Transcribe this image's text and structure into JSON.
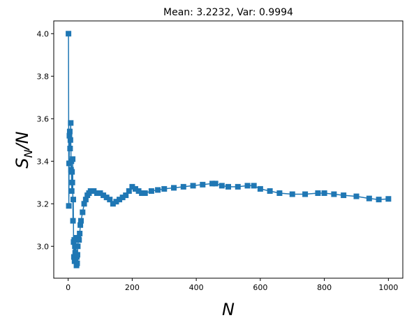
{
  "chart_data": {
    "type": "line",
    "title": "Mean: 3.2232, Var: 0.9994",
    "xlabel": "N",
    "ylabel": {
      "base": "S",
      "sub": "N",
      "suffix": "/N"
    },
    "xlim": [
      -45,
      1045
    ],
    "ylim": [
      2.85,
      4.06
    ],
    "xticks": [
      0,
      200,
      400,
      600,
      800,
      1000
    ],
    "yticks": [
      3.0,
      3.2,
      3.4,
      3.6,
      3.8,
      4.0
    ],
    "ytick_labels": [
      "3.0",
      "3.2",
      "3.4",
      "3.6",
      "3.8",
      "4.0"
    ],
    "grid": false,
    "marker": "square",
    "series": [
      {
        "color": "#1f77b4",
        "x": [
          1,
          2,
          3,
          4,
          5,
          6,
          7,
          8,
          9,
          10,
          11,
          12,
          13,
          14,
          15,
          16,
          17,
          18,
          19,
          20,
          21,
          22,
          23,
          24,
          25,
          26,
          27,
          28,
          29,
          30,
          32,
          34,
          36,
          38,
          40,
          45,
          50,
          55,
          60,
          65,
          70,
          80,
          90,
          100,
          110,
          120,
          130,
          140,
          150,
          160,
          170,
          180,
          190,
          200,
          210,
          220,
          230,
          240,
          260,
          280,
          300,
          330,
          360,
          390,
          420,
          450,
          460,
          480,
          500,
          530,
          560,
          580,
          600,
          630,
          660,
          700,
          740,
          780,
          800,
          830,
          860,
          900,
          940,
          970,
          1000
        ],
        "y": [
          4.0,
          3.19,
          3.39,
          3.52,
          3.54,
          3.46,
          3.5,
          3.58,
          3.36,
          3.4,
          3.26,
          3.35,
          3.3,
          3.41,
          3.12,
          3.22,
          3.02,
          2.95,
          3.03,
          2.93,
          3.0,
          2.97,
          2.94,
          3.04,
          2.96,
          2.91,
          2.95,
          2.92,
          2.96,
          3.0,
          3.04,
          3.03,
          3.06,
          3.1,
          3.12,
          3.16,
          3.2,
          3.22,
          3.24,
          3.25,
          3.26,
          3.26,
          3.25,
          3.25,
          3.24,
          3.23,
          3.22,
          3.2,
          3.21,
          3.22,
          3.23,
          3.24,
          3.26,
          3.28,
          3.27,
          3.26,
          3.25,
          3.25,
          3.26,
          3.265,
          3.27,
          3.275,
          3.28,
          3.285,
          3.29,
          3.295,
          3.295,
          3.285,
          3.28,
          3.28,
          3.285,
          3.285,
          3.27,
          3.26,
          3.25,
          3.245,
          3.245,
          3.25,
          3.25,
          3.245,
          3.24,
          3.235,
          3.225,
          3.22,
          3.223
        ]
      }
    ]
  }
}
